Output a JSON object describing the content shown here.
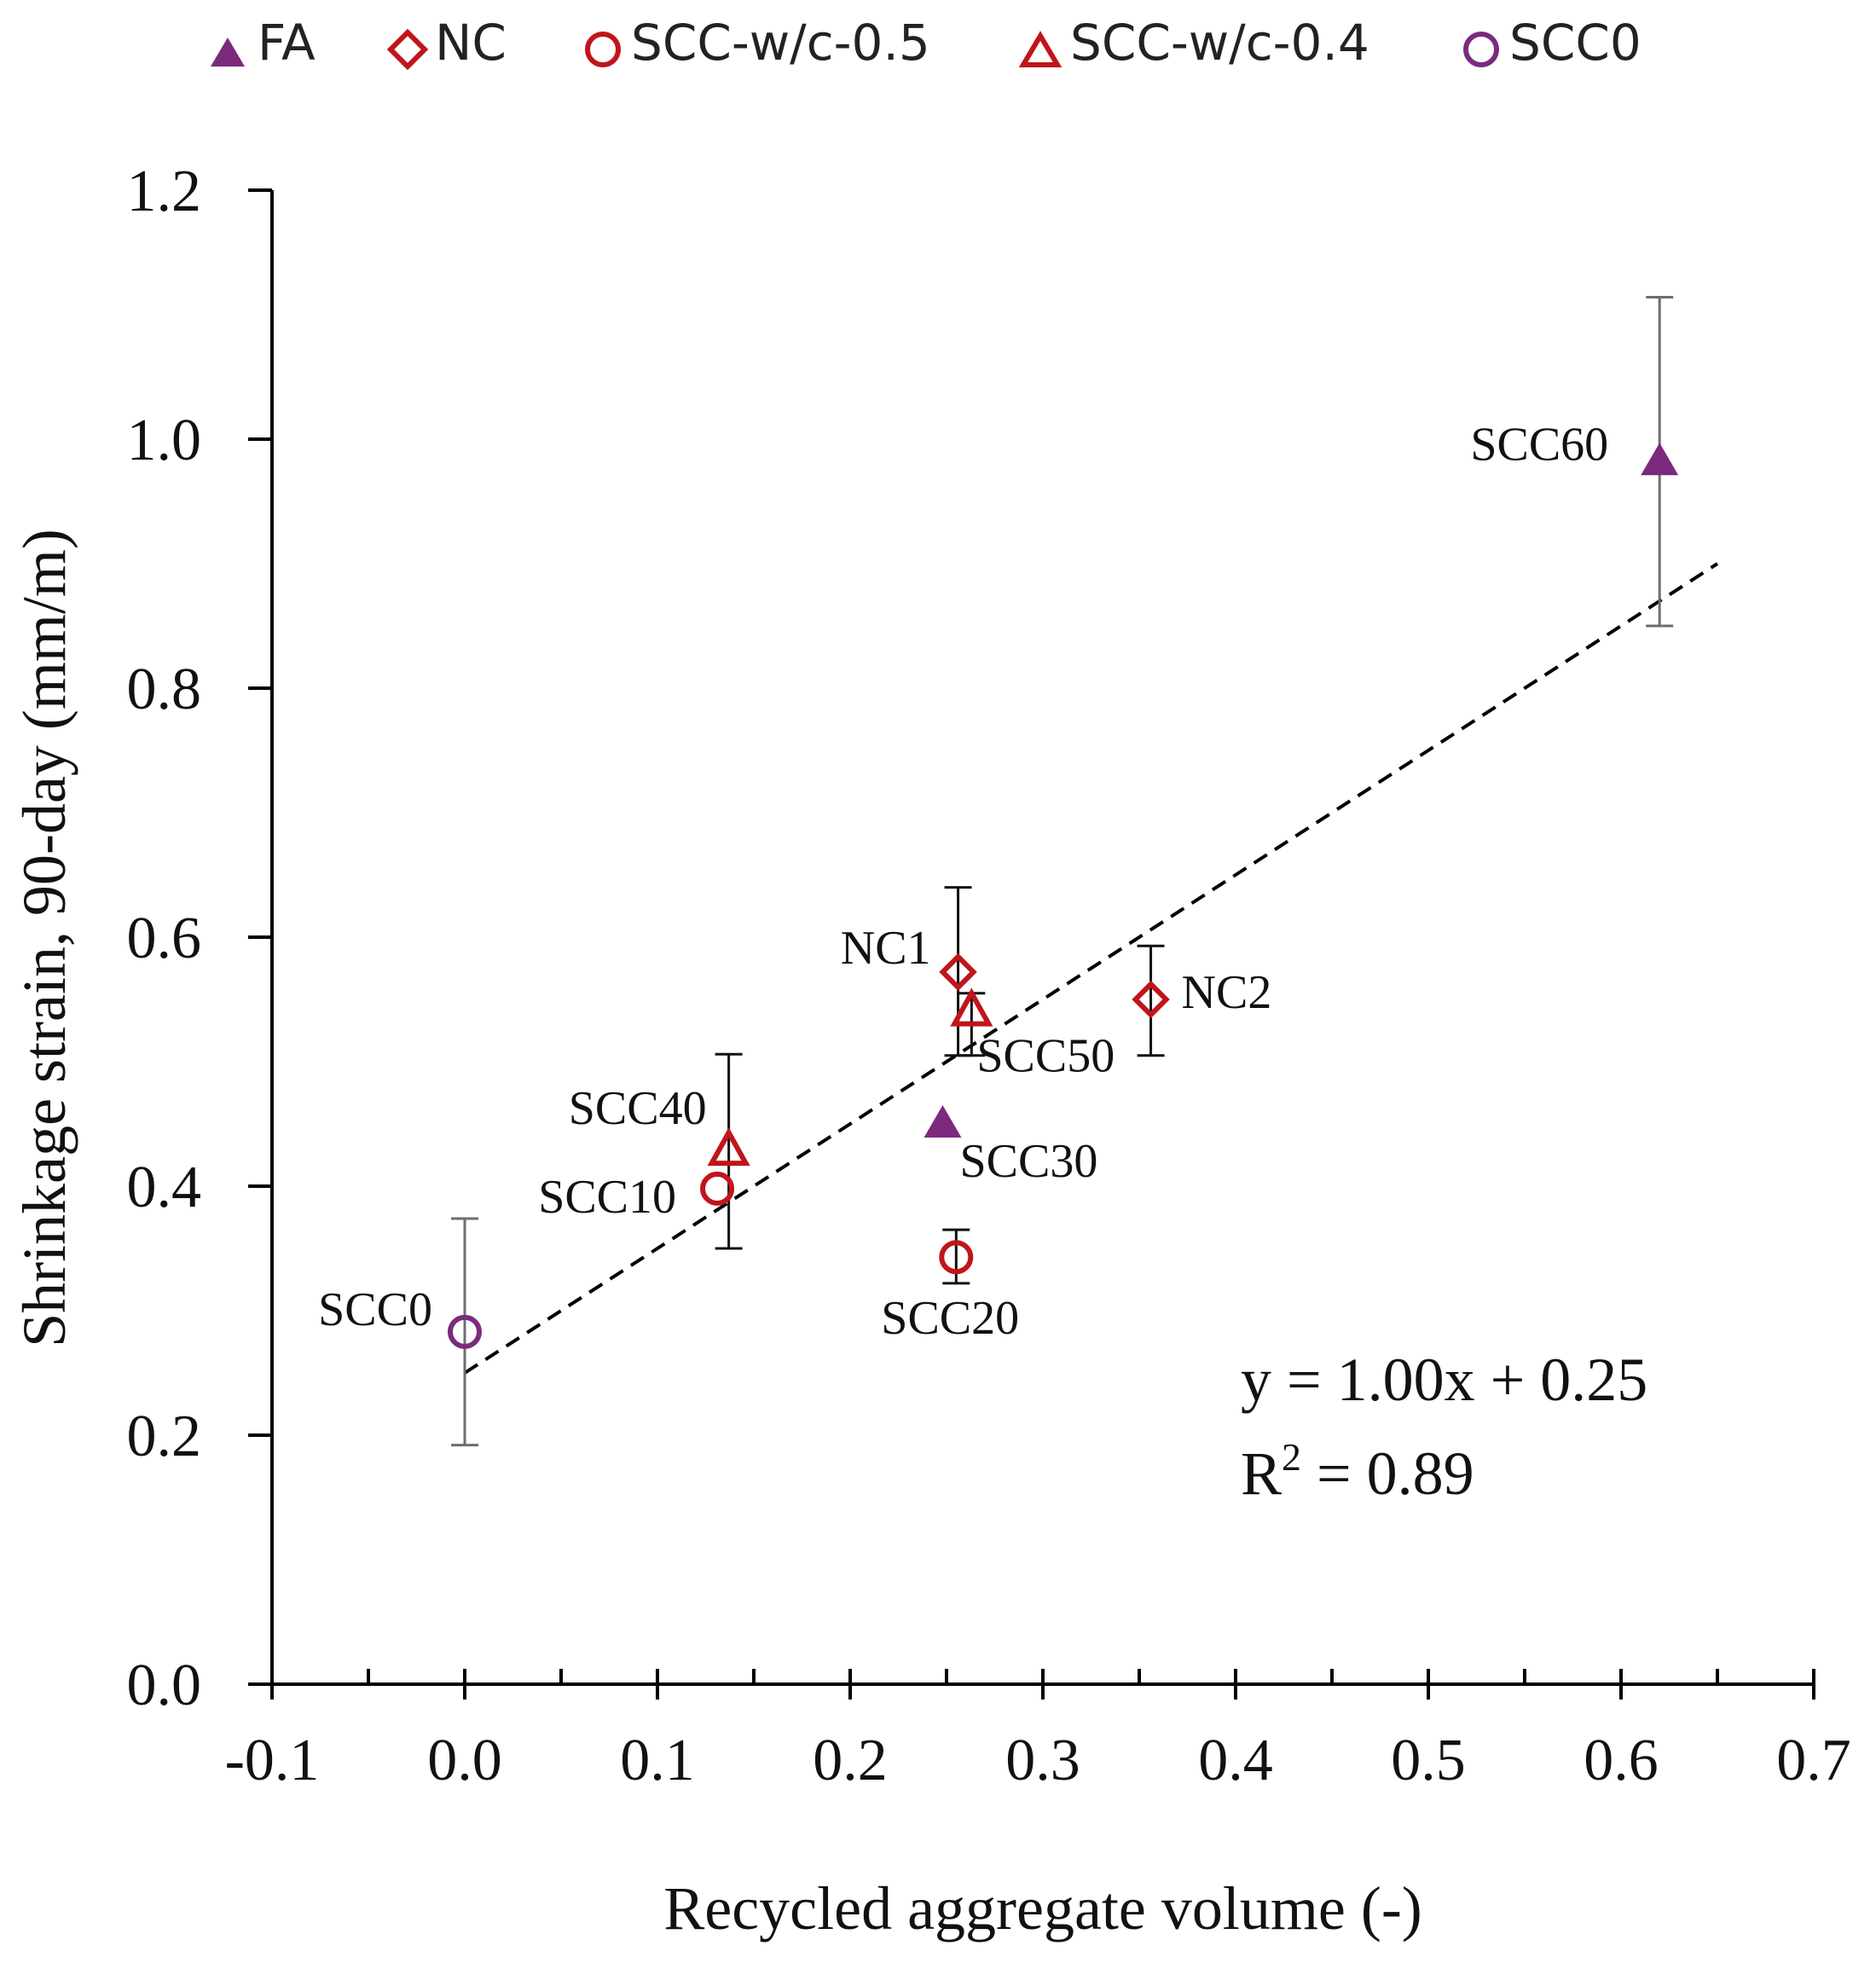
{
  "chart_data": {
    "type": "scatter",
    "title": "",
    "xlabel": "Recycled aggregate volume (-)",
    "ylabel": "Shrinkage strain, 90-day (mm/m)",
    "xlim": [
      -0.1,
      0.7
    ],
    "ylim": [
      0.0,
      1.2
    ],
    "x_ticks": [
      "-0.1",
      "0.0",
      "0.1",
      "0.2",
      "0.3",
      "0.4",
      "0.5",
      "0.6",
      "0.7"
    ],
    "y_ticks": [
      "0.0",
      "0.2",
      "0.4",
      "0.6",
      "0.8",
      "1.0",
      "1.2"
    ],
    "legend": {
      "position": "top",
      "entries": [
        {
          "name": "FA",
          "marker": "triangle-filled",
          "color": "#7b2a7e"
        },
        {
          "name": "NC",
          "marker": "diamond-open",
          "color": "#c0151b"
        },
        {
          "name": "SCC-w/c-0.5",
          "marker": "circle-open",
          "color": "#c0151b"
        },
        {
          "name": "SCC-w/c-0.4",
          "marker": "triangle-open",
          "color": "#c0151b"
        },
        {
          "name": "SCC0",
          "marker": "circle-open",
          "color": "#7b2a7e"
        }
      ]
    },
    "series": [
      {
        "name": "FA",
        "points": [
          {
            "label": "SCC30",
            "x": 0.248,
            "y": 0.45,
            "err": null
          },
          {
            "label": "SCC60",
            "x": 0.62,
            "y": 0.982,
            "err": [
              0.85,
              1.114
            ]
          }
        ]
      },
      {
        "name": "NC",
        "points": [
          {
            "label": "NC1",
            "x": 0.256,
            "y": 0.572,
            "err": [
              0.505,
              0.64
            ]
          },
          {
            "label": "NC2",
            "x": 0.356,
            "y": 0.55,
            "err": [
              0.505,
              0.593
            ]
          }
        ]
      },
      {
        "name": "SCC-w/c-0.5",
        "points": [
          {
            "label": "SCC10",
            "x": 0.131,
            "y": 0.398,
            "err": null
          },
          {
            "label": "SCC20",
            "x": 0.255,
            "y": 0.343,
            "err": [
              0.322,
              0.365
            ]
          }
        ]
      },
      {
        "name": "SCC-w/c-0.4",
        "points": [
          {
            "label": "SCC40",
            "x": 0.137,
            "y": 0.428,
            "err": [
              0.35,
              0.506
            ]
          },
          {
            "label": "SCC50",
            "x": 0.263,
            "y": 0.54,
            "err": [
              0.505,
              0.555
            ]
          }
        ]
      },
      {
        "name": "SCC0",
        "points": [
          {
            "label": "SCC0",
            "x": 0.0,
            "y": 0.283,
            "err": [
              0.192,
              0.374
            ]
          }
        ]
      }
    ],
    "trendline": {
      "slope": 1.0,
      "intercept": 0.25,
      "x_range": [
        0.0,
        0.65
      ],
      "style": "dashed"
    },
    "annotations": {
      "equation": "y = 1.00x + 0.25",
      "r2_prefix": "R",
      "r2_sup": "2",
      "r2_value": " = 0.89"
    },
    "grid": false
  }
}
